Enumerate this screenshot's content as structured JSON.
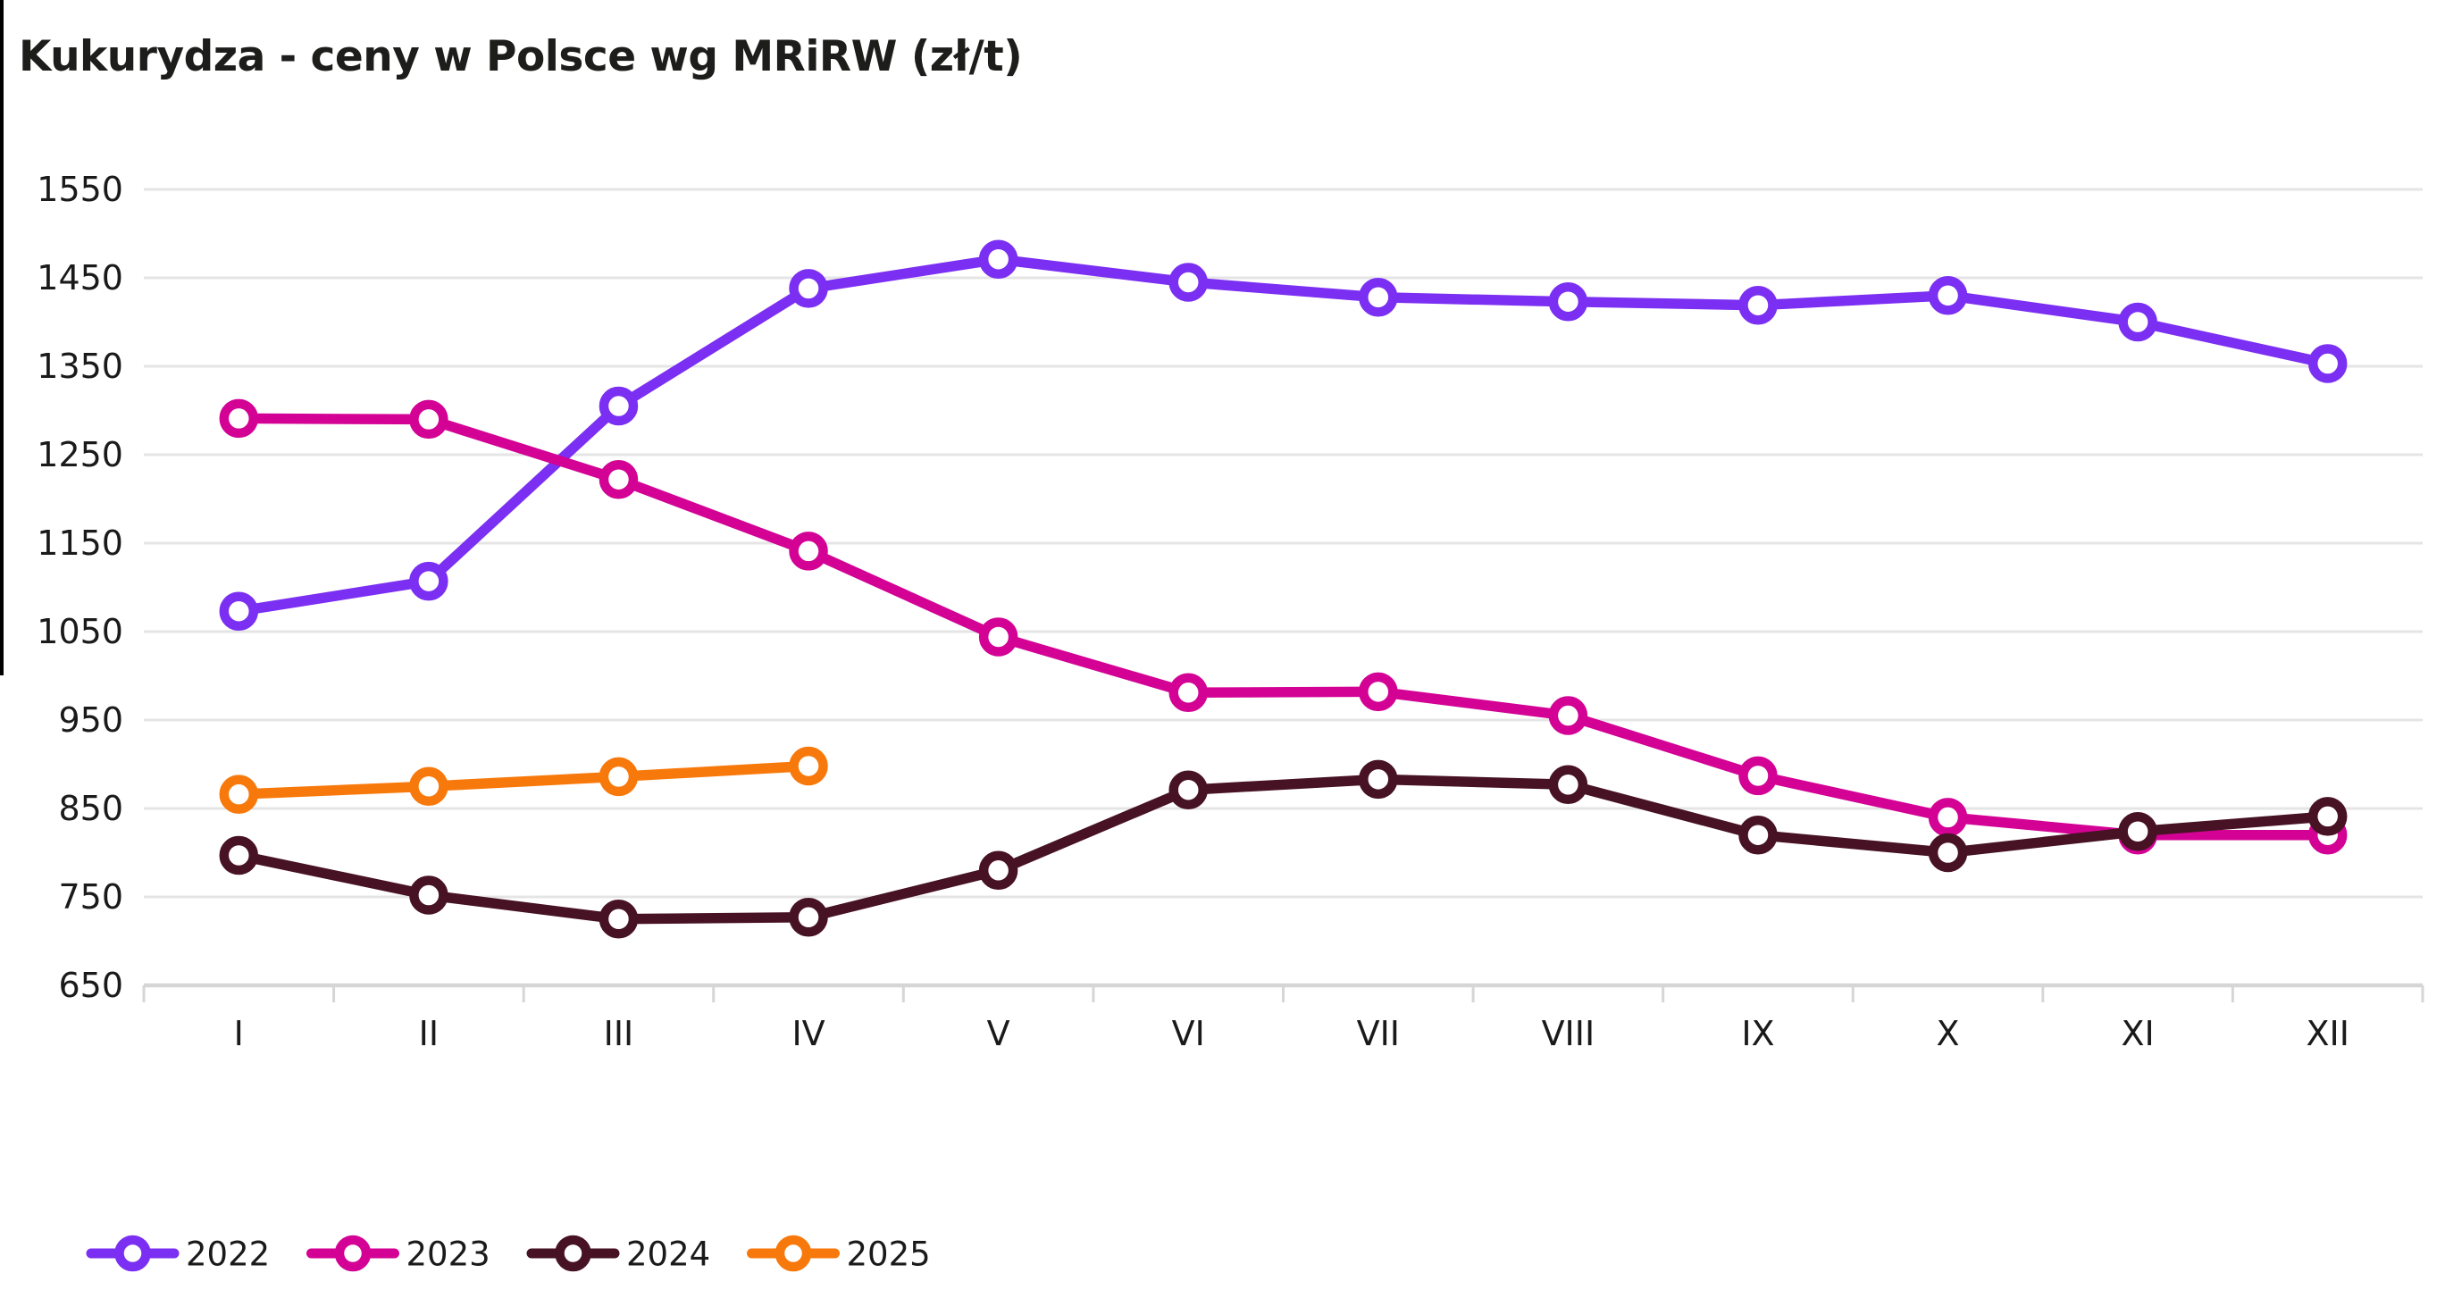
{
  "chart_data": {
    "type": "line",
    "title": "Kukurydza - ceny w Polsce wg MRiRW (zł/t)",
    "unit": "zł/t",
    "xlabel": "",
    "ylabel": "",
    "x_categories": [
      "I",
      "II",
      "III",
      "IV",
      "V",
      "VI",
      "VII",
      "VIII",
      "IX",
      "X",
      "XI",
      "XII"
    ],
    "y_ticks": [
      650,
      750,
      850,
      950,
      1050,
      1150,
      1250,
      1350,
      1450,
      1550
    ],
    "ylim": [
      650,
      1550
    ],
    "grid": "horizontal",
    "legend_position": "bottom-left",
    "series": [
      {
        "name": "2022",
        "color": "#7b2ff2",
        "values": [
          1073,
          1107,
          1305,
          1438,
          1471,
          1445,
          1428,
          1423,
          1419,
          1430,
          1400,
          1353
        ]
      },
      {
        "name": "2023",
        "color": "#d30295",
        "values": [
          1291,
          1290,
          1222,
          1141,
          1044,
          981,
          982,
          955,
          887,
          840,
          820,
          820
        ]
      },
      {
        "name": "2024",
        "color": "#471224",
        "values": [
          797,
          752,
          725,
          727,
          780,
          871,
          883,
          877,
          820,
          800,
          824,
          841
        ]
      },
      {
        "name": "2025",
        "color": "#f8790b",
        "values": [
          866,
          875,
          886,
          898
        ]
      }
    ],
    "style": {
      "gridline_color": "#e5e5e5",
      "axis_color": "#d6d6d6",
      "label_color": "#1a1a1a",
      "background": "#ffffff"
    }
  }
}
